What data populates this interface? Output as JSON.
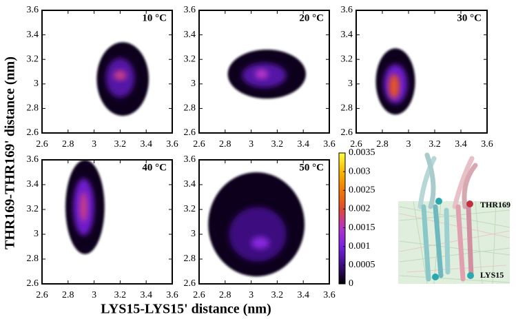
{
  "chart_data": [
    {
      "type": "heatmap",
      "label": "10 °C",
      "xlim": [
        2.6,
        3.6
      ],
      "ylim": [
        2.6,
        3.6
      ],
      "xticks": [
        2.6,
        2.8,
        3,
        3.2,
        3.4,
        3.6
      ],
      "yticks": [
        2.6,
        2.8,
        3,
        3.2,
        3.4,
        3.6
      ],
      "blobs": [
        {
          "x": 3.22,
          "y": 3.04,
          "rx": 0.2,
          "ry": 0.3,
          "value": 0.0001
        },
        {
          "x": 3.2,
          "y": 3.05,
          "rx": 0.11,
          "ry": 0.16,
          "value": 0.0007
        },
        {
          "x": 3.2,
          "y": 3.07,
          "rx": 0.05,
          "ry": 0.04,
          "value": 0.0017
        }
      ]
    },
    {
      "type": "heatmap",
      "label": "20 °C",
      "xlim": [
        2.6,
        3.6
      ],
      "ylim": [
        2.6,
        3.6
      ],
      "xticks": [
        2.6,
        2.8,
        3,
        3.2,
        3.4,
        3.6
      ],
      "yticks": [
        2.6,
        2.8,
        3,
        3.2,
        3.4,
        3.6
      ],
      "blobs": [
        {
          "x": 3.12,
          "y": 3.08,
          "rx": 0.3,
          "ry": 0.2,
          "value": 0.0001
        },
        {
          "x": 3.1,
          "y": 3.07,
          "rx": 0.17,
          "ry": 0.1,
          "value": 0.0007
        },
        {
          "x": 3.08,
          "y": 3.08,
          "rx": 0.05,
          "ry": 0.04,
          "value": 0.0015
        }
      ]
    },
    {
      "type": "heatmap",
      "label": "30 °C",
      "xlim": [
        2.6,
        3.6
      ],
      "ylim": [
        2.6,
        3.6
      ],
      "xticks": [
        2.6,
        2.8,
        3,
        3.2,
        3.4,
        3.6
      ],
      "yticks": [
        2.6,
        2.8,
        3,
        3.2,
        3.4,
        3.6
      ],
      "blobs": [
        {
          "x": 2.9,
          "y": 3.02,
          "rx": 0.15,
          "ry": 0.27,
          "value": 0.0001
        },
        {
          "x": 2.9,
          "y": 3.0,
          "rx": 0.09,
          "ry": 0.16,
          "value": 0.0009
        },
        {
          "x": 2.89,
          "y": 2.98,
          "rx": 0.04,
          "ry": 0.1,
          "value": 0.0021
        }
      ]
    },
    {
      "type": "heatmap",
      "label": "40 °C",
      "xlim": [
        2.6,
        3.6
      ],
      "ylim": [
        2.6,
        3.6
      ],
      "xticks": [
        2.6,
        2.8,
        3,
        3.2,
        3.4,
        3.6
      ],
      "yticks": [
        2.6,
        2.8,
        3,
        3.2,
        3.4,
        3.6
      ],
      "blobs": [
        {
          "x": 2.93,
          "y": 3.22,
          "rx": 0.15,
          "ry": 0.38,
          "value": 0.0001
        },
        {
          "x": 2.92,
          "y": 3.22,
          "rx": 0.08,
          "ry": 0.23,
          "value": 0.0009
        },
        {
          "x": 2.92,
          "y": 3.22,
          "rx": 0.03,
          "ry": 0.12,
          "value": 0.0017
        }
      ]
    },
    {
      "type": "heatmap",
      "label": "50 °C",
      "xlim": [
        2.6,
        3.6
      ],
      "ylim": [
        2.6,
        3.6
      ],
      "xticks": [
        2.6,
        2.8,
        3,
        3.2,
        3.4,
        3.6
      ],
      "yticks": [
        2.6,
        2.8,
        3,
        3.2,
        3.4,
        3.6
      ],
      "blobs": [
        {
          "x": 3.04,
          "y": 3.08,
          "rx": 0.37,
          "ry": 0.42,
          "value": 0.0001
        },
        {
          "x": 3.05,
          "y": 3.0,
          "rx": 0.22,
          "ry": 0.22,
          "value": 0.0005
        },
        {
          "x": 3.07,
          "y": 2.93,
          "rx": 0.07,
          "ry": 0.05,
          "value": 0.0011
        }
      ]
    }
  ],
  "figure": {
    "xlabel": "LYS15-LYS15' distance (nm)",
    "ylabel": "THR169-THR169' distance (nm)"
  },
  "colorbar": {
    "lim": [
      0,
      0.0035
    ],
    "ticks": [
      0,
      0.0005,
      0.001,
      0.0015,
      0.002,
      0.0025,
      0.003,
      0.0035
    ],
    "colors": [
      "#000000",
      "#3c0c80",
      "#7a22e0",
      "#b534c8",
      "#e04a30",
      "#f07a00",
      "#f8b800",
      "#ffff40"
    ]
  },
  "inset": {
    "labels": [
      "THR169",
      "LYS15"
    ]
  }
}
